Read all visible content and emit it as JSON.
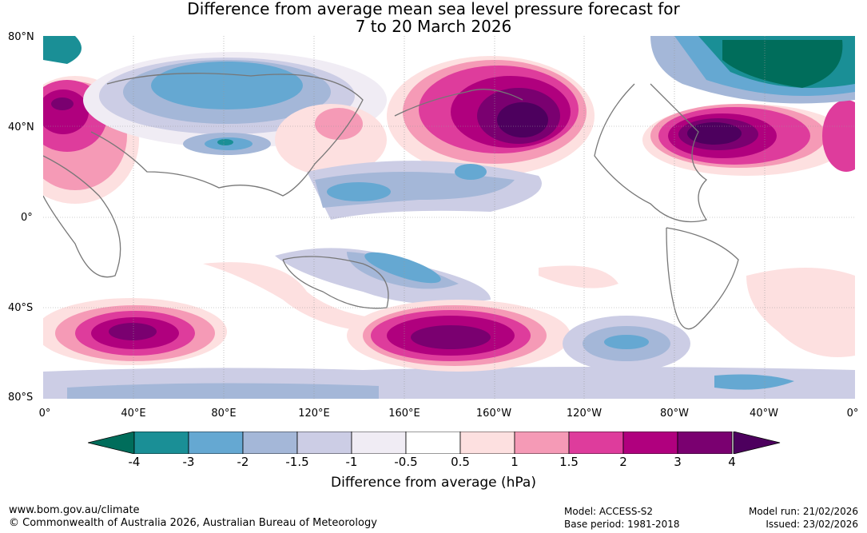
{
  "title_line1": "Difference from average mean sea level pressure forecast for",
  "title_line2": "7 to 20 March 2026",
  "lat_labels": [
    "80°N",
    "40°N",
    "0°",
    "40°S",
    "80°S"
  ],
  "lon_labels": [
    "0°",
    "40°E",
    "80°E",
    "120°E",
    "160°E",
    "160°W",
    "120°W",
    "80°W",
    "40°W",
    "0°"
  ],
  "colorbar": {
    "ticks": [
      "-4",
      "-3",
      "-2",
      "-1.5",
      "-1",
      "-0.5",
      "0.5",
      "1",
      "1.5",
      "2",
      "3",
      "4"
    ],
    "colors": [
      "#1a8f96",
      "#65a8d2",
      "#a4b7d8",
      "#cccde5",
      "#f0ecf4",
      "#ffffff",
      "#fde0e0",
      "#f59ab6",
      "#de3c9c",
      "#b0007e",
      "#7a0070"
    ],
    "under_color": "#006d5b",
    "over_color": "#4d005e",
    "label": "Difference from average (hPa)"
  },
  "footer": {
    "website": "www.bom.gov.au/climate",
    "copyright": "© Commonwealth of Australia 2026, Australian Bureau of Meteorology",
    "model": "Model: ACCESS-S2",
    "base_period": "Base period: 1981-2018",
    "model_run": "Model run: 21/02/2026",
    "issued": "Issued: 23/02/2026"
  }
}
